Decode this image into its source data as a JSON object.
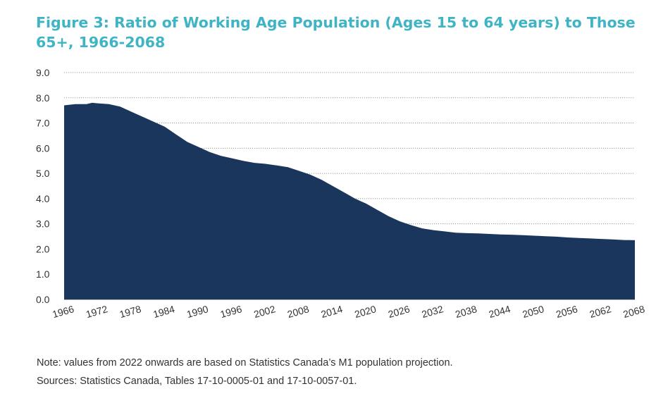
{
  "title": "Figure 3: Ratio of Working Age Population (Ages 15 to 64 years) to Those 65+, 1966-2068",
  "note": "Note: values from 2022 onwards are based on Statistics Canada’s M1 population projection.",
  "sources": "Sources: Statistics Canada, Tables 17-10-0005-01 and 17-10-0057-01.",
  "colors": {
    "title": "#3fb4c4",
    "area": "#1b365d",
    "grid": "#9a9a9a"
  },
  "chart_data": {
    "type": "area",
    "title": "Figure 3: Ratio of Working Age Population (Ages 15 to 64 years) to Those 65+, 1966-2068",
    "xlabel": "",
    "ylabel": "",
    "xlim": [
      1966,
      2068
    ],
    "ylim": [
      0,
      9
    ],
    "grid": true,
    "y_ticks": [
      "0.0",
      "1.0",
      "2.0",
      "3.0",
      "4.0",
      "5.0",
      "6.0",
      "7.0",
      "8.0",
      "9.0"
    ],
    "x_ticks": [
      "1966",
      "1972",
      "1978",
      "1984",
      "1990",
      "1996",
      "2002",
      "2008",
      "2014",
      "2020",
      "2026",
      "2032",
      "2038",
      "2044",
      "2050",
      "2056",
      "2062",
      "2068"
    ],
    "series": [
      {
        "points": [
          [
            1966,
            7.7
          ],
          [
            1968,
            7.75
          ],
          [
            1970,
            7.75
          ],
          [
            1971,
            7.8
          ],
          [
            1972,
            7.78
          ],
          [
            1974,
            7.75
          ],
          [
            1976,
            7.65
          ],
          [
            1978,
            7.45
          ],
          [
            1980,
            7.25
          ],
          [
            1982,
            7.05
          ],
          [
            1984,
            6.85
          ],
          [
            1986,
            6.55
          ],
          [
            1988,
            6.25
          ],
          [
            1990,
            6.05
          ],
          [
            1992,
            5.85
          ],
          [
            1994,
            5.7
          ],
          [
            1996,
            5.6
          ],
          [
            1998,
            5.5
          ],
          [
            2000,
            5.42
          ],
          [
            2002,
            5.38
          ],
          [
            2004,
            5.32
          ],
          [
            2006,
            5.25
          ],
          [
            2008,
            5.1
          ],
          [
            2010,
            4.95
          ],
          [
            2012,
            4.75
          ],
          [
            2014,
            4.5
          ],
          [
            2016,
            4.25
          ],
          [
            2018,
            4.0
          ],
          [
            2020,
            3.8
          ],
          [
            2022,
            3.55
          ],
          [
            2024,
            3.3
          ],
          [
            2026,
            3.1
          ],
          [
            2028,
            2.95
          ],
          [
            2030,
            2.82
          ],
          [
            2032,
            2.75
          ],
          [
            2034,
            2.7
          ],
          [
            2036,
            2.65
          ],
          [
            2038,
            2.63
          ],
          [
            2040,
            2.62
          ],
          [
            2042,
            2.6
          ],
          [
            2044,
            2.58
          ],
          [
            2046,
            2.57
          ],
          [
            2048,
            2.55
          ],
          [
            2050,
            2.53
          ],
          [
            2052,
            2.51
          ],
          [
            2054,
            2.49
          ],
          [
            2056,
            2.46
          ],
          [
            2058,
            2.44
          ],
          [
            2060,
            2.42
          ],
          [
            2062,
            2.4
          ],
          [
            2064,
            2.38
          ],
          [
            2066,
            2.36
          ],
          [
            2068,
            2.35
          ]
        ]
      }
    ]
  }
}
